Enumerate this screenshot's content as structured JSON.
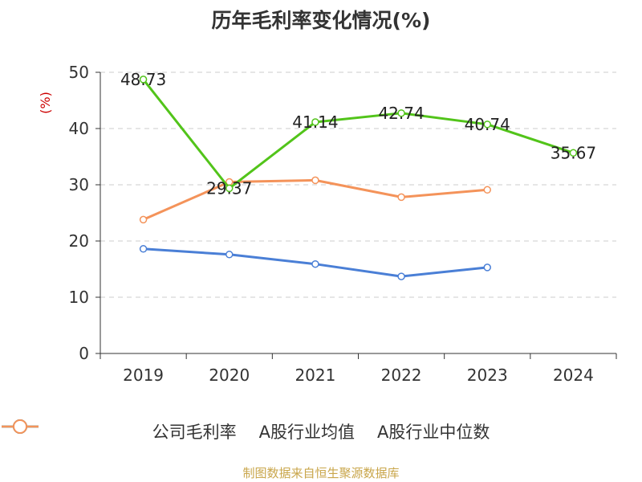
{
  "title": "历年毛利率变化情况(%)",
  "source": "制图数据来自恒生聚源数据库",
  "chart_data": {
    "type": "line",
    "categories": [
      "2019",
      "2020",
      "2021",
      "2022",
      "2023",
      "2024"
    ],
    "ylabel": "(%)",
    "ylim": [
      0,
      50
    ],
    "yticks": [
      0,
      10,
      20,
      30,
      40,
      50
    ],
    "grid": true,
    "legend_position": "bottom",
    "series": [
      {
        "name": "公司毛利率",
        "color": "#52c41a",
        "values": [
          48.73,
          29.37,
          41.14,
          42.74,
          40.74,
          35.67
        ],
        "labels": [
          "48.73",
          "29.37",
          "41.14",
          "42.74",
          "40.74",
          "35.67"
        ]
      },
      {
        "name": "A股行业均值",
        "color": "#4a7fd6",
        "values": [
          18.6,
          17.6,
          15.9,
          13.7,
          15.3,
          null
        ]
      },
      {
        "name": "A股行业中位数",
        "color": "#f4935a",
        "values": [
          23.8,
          30.5,
          30.8,
          27.8,
          29.1,
          null
        ]
      }
    ]
  }
}
